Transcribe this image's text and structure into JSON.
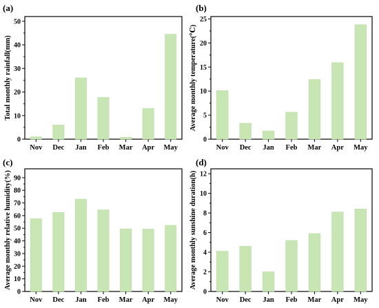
{
  "figure": {
    "bar_color": "#c8e6b4",
    "bar_stroke": "#b9dba3",
    "axis_color": "#000000"
  },
  "chart_data": [
    {
      "panel": "(a)",
      "type": "bar",
      "categories": [
        "Nov",
        "Dec",
        "Jan",
        "Feb",
        "Mar",
        "Apr",
        "May"
      ],
      "values": [
        1.0,
        6.0,
        26.0,
        17.7,
        0.8,
        13.0,
        44.5
      ],
      "ylabel": "Total monthly rainfall(mm)",
      "ylim": [
        0,
        52
      ],
      "yticks": [
        0,
        10,
        20,
        30,
        40,
        50
      ],
      "grid": false,
      "legend": "none"
    },
    {
      "panel": "(b)",
      "type": "bar",
      "categories": [
        "Nov",
        "Dec",
        "Jan",
        "Feb",
        "Mar",
        "Apr",
        "May"
      ],
      "values": [
        10.1,
        3.3,
        1.7,
        5.6,
        12.4,
        15.9,
        23.8
      ],
      "ylabel": "Average monthly temperature(℃)",
      "ylim": [
        0,
        25.5
      ],
      "yticks": [
        0,
        5,
        10,
        15,
        20,
        25
      ],
      "grid": false,
      "legend": "none"
    },
    {
      "panel": "(c)",
      "type": "bar",
      "categories": [
        "Nov",
        "Dec",
        "Jan",
        "Feb",
        "Mar",
        "Apr",
        "May"
      ],
      "values": [
        57.5,
        62.5,
        73.0,
        64.5,
        49.5,
        49.3,
        52.3
      ],
      "ylabel": "Average monthly relative humidity(%)",
      "ylim": [
        0,
        97
      ],
      "yticks": [
        0,
        10,
        20,
        30,
        40,
        50,
        60,
        70,
        80,
        90
      ],
      "grid": false,
      "legend": "none"
    },
    {
      "panel": "(d)",
      "type": "bar",
      "categories": [
        "Nov",
        "Dec",
        "Jan",
        "Feb",
        "Mar",
        "Apr",
        "May"
      ],
      "values": [
        4.1,
        4.6,
        2.0,
        5.2,
        5.9,
        8.1,
        8.4
      ],
      "ylabel": "Average monthly sunshine duration(h)",
      "ylim": [
        0,
        12.5
      ],
      "yticks": [
        0,
        2,
        4,
        6,
        8,
        10,
        12
      ],
      "grid": false,
      "legend": "none"
    }
  ]
}
